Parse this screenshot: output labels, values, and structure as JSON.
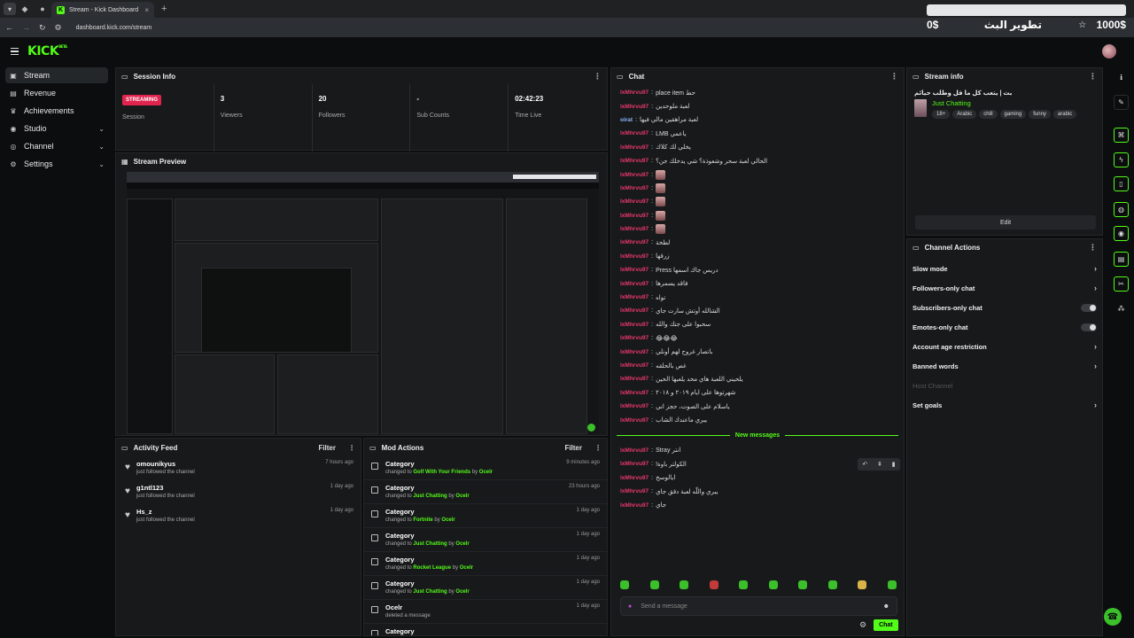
{
  "browser": {
    "tab_title": "Stream - Kick Dashboard",
    "url": "dashboard.kick.com/stream",
    "new_tab": "+",
    "close": "×"
  },
  "overlay": {
    "left_amount": "0$",
    "title": "تطوير البث",
    "right_amount": "1000$"
  },
  "logo": {
    "text": "KICK",
    "beta": "BETA"
  },
  "sidebar": {
    "items": [
      {
        "label": "Stream",
        "icon": "stream-icon",
        "active": true,
        "expandable": false
      },
      {
        "label": "Revenue",
        "icon": "revenue-icon",
        "active": false,
        "expandable": false
      },
      {
        "label": "Achievements",
        "icon": "trophy-icon",
        "active": false,
        "expandable": false
      },
      {
        "label": "Studio",
        "icon": "studio-icon",
        "active": false,
        "expandable": true
      },
      {
        "label": "Channel",
        "icon": "channel-icon",
        "active": false,
        "expandable": true
      },
      {
        "label": "Settings",
        "icon": "gear-icon",
        "active": false,
        "expandable": true
      }
    ]
  },
  "session_info": {
    "title": "Session Info",
    "badge": "STREAMING",
    "stats": [
      {
        "value": "",
        "label": "Session"
      },
      {
        "value": "3",
        "label": "Viewers"
      },
      {
        "value": "20",
        "label": "Followers"
      },
      {
        "value": "-",
        "label": "Sub Counts"
      },
      {
        "value": "02:42:23",
        "label": "Time Live"
      }
    ]
  },
  "stream_preview": {
    "title": "Stream Preview"
  },
  "activity_feed": {
    "title": "Activity Feed",
    "filter": "Filter",
    "items": [
      {
        "name": "omounikyus",
        "sub": "just followed the channel",
        "time": "7 hours ago"
      },
      {
        "name": "g1ntl123",
        "sub": "just followed the channel",
        "time": "1 day ago"
      },
      {
        "name": "Hs_z",
        "sub": "just followed the channel",
        "time": "1 day ago"
      }
    ]
  },
  "mod_actions": {
    "title": "Mod Actions",
    "filter": "Filter",
    "items": [
      {
        "title": "Category",
        "pre": "changed to",
        "target": "Golf With Your Friends",
        "mid": "by",
        "actor": "Ocelr",
        "time": "9 minutes ago"
      },
      {
        "title": "Category",
        "pre": "changed to",
        "target": "Just Chatting",
        "mid": "by",
        "actor": "Ocelr",
        "time": "23 hours ago"
      },
      {
        "title": "Category",
        "pre": "changed to",
        "target": "Fortnite",
        "mid": "by",
        "actor": "Ocelr",
        "time": "1 day ago"
      },
      {
        "title": "Category",
        "pre": "changed to",
        "target": "Just Chatting",
        "mid": "by",
        "actor": "Ocelr",
        "time": "1 day ago"
      },
      {
        "title": "Category",
        "pre": "changed to",
        "target": "Rocket League",
        "mid": "by",
        "actor": "Ocelr",
        "time": "1 day ago"
      },
      {
        "title": "Category",
        "pre": "changed to",
        "target": "Just Chatting",
        "mid": "by",
        "actor": "Ocelr",
        "time": "1 day ago"
      },
      {
        "title": "Ocelr",
        "pre": "deleted a message",
        "target": "",
        "mid": "",
        "actor": "",
        "time": "1 day ago"
      },
      {
        "title": "Category",
        "pre": "",
        "target": "",
        "mid": "",
        "actor": "",
        "time": ""
      }
    ]
  },
  "chat": {
    "title": "Chat",
    "messages": [
      {
        "user": "lxMhrvu97",
        "msg": "حط place item",
        "emote": false,
        "blue": false
      },
      {
        "user": "lxMhrvu97",
        "msg": "لعبة ملوحدين",
        "emote": false,
        "blue": false
      },
      {
        "user": "oirat",
        "msg": "لعبة مراهقين مالي فيها",
        "emote": false,
        "blue": true
      },
      {
        "user": "lxMhrvu97",
        "msg": "ياعمي LMB",
        "emote": false,
        "blue": false
      },
      {
        "user": "lxMhrvu97",
        "msg": "يخلي لك كلاك",
        "emote": false,
        "blue": false
      },
      {
        "user": "lxMhrvu97",
        "msg": "الحالي لعبة سحر وشعوذة؟ شي يدخلك جن؟",
        "emote": false,
        "blue": false
      },
      {
        "user": "lxMhrvu97",
        "msg": "",
        "emote": true,
        "blue": false
      },
      {
        "user": "lxMhrvu97",
        "msg": "",
        "emote": true,
        "blue": false
      },
      {
        "user": "lxMhrvu97",
        "msg": "",
        "emote": true,
        "blue": false
      },
      {
        "user": "lxMhrvu97",
        "msg": "",
        "emote": true,
        "blue": false
      },
      {
        "user": "lxMhrvu97",
        "msg": "",
        "emote": true,
        "blue": false
      },
      {
        "user": "lxMhrvu97",
        "msg": "لطخة",
        "emote": false,
        "blue": false
      },
      {
        "user": "lxMhrvu97",
        "msg": "زرقها",
        "emote": false,
        "blue": false
      },
      {
        "user": "lxMhrvu97",
        "msg": "دريس جاك اسمها Press",
        "emote": false,
        "blue": false
      },
      {
        "user": "lxMhrvu97",
        "msg": "فاقد يسمرها",
        "emote": false,
        "blue": false
      },
      {
        "user": "lxMhrvu97",
        "msg": "تواه",
        "emote": false,
        "blue": false
      },
      {
        "user": "lxMhrvu97",
        "msg": "الشالله أوتش سارت جاي",
        "emote": false,
        "blue": false
      },
      {
        "user": "lxMhrvu97",
        "msg": "سحبوا على جتك والله",
        "emote": false,
        "blue": false
      },
      {
        "user": "lxMhrvu97",
        "msg": "😂😂😂",
        "emote": false,
        "blue": false
      },
      {
        "user": "lxMhrvu97",
        "msg": "باتصار غروح لهم أونلي",
        "emote": false,
        "blue": false
      },
      {
        "user": "lxMhrvu97",
        "msg": "غص بالحلقه",
        "emote": false,
        "blue": false
      },
      {
        "user": "lxMhrvu97",
        "msg": "يلحيني اللعبة هاي محد يلعبها الحين",
        "emote": false,
        "blue": false
      },
      {
        "user": "lxMhrvu97",
        "msg": "شهرتوها على ايام ٢٠١٩ و ٢٠١٨",
        "emote": false,
        "blue": false
      },
      {
        "user": "lxMhrvu97",
        "msg": "ياسلام على الصوت، حجز اني",
        "emote": false,
        "blue": false
      },
      {
        "user": "lxMhrvu97",
        "msg": "يبري ماعندك الشاب",
        "emote": false,
        "blue": false
      }
    ],
    "new_messages_label": "New messages",
    "new_messages": [
      {
        "user": "lxMhrvu97",
        "msg": "انتر Stray"
      },
      {
        "user": "lxMhrvu97",
        "msg": "الكولتر باوة!"
      },
      {
        "user": "lxMhrvu97",
        "msg": "ايالوسخ"
      },
      {
        "user": "lxMhrvu97",
        "msg": "يبري واللّه لعبة دقق جاي"
      },
      {
        "user": "lxMhrvu97",
        "msg": "جاي"
      }
    ],
    "input_placeholder": "Send a message",
    "send_label": "Chat"
  },
  "stream_info": {
    "title": "Stream info",
    "stream_title": "بث | يتعب كل ما قل وطلب حيائم",
    "category": "Just Chatting",
    "tags": [
      "18+",
      "Arabic",
      "chill",
      "gaming",
      "funny",
      "arabic"
    ],
    "edit_label": "Edit"
  },
  "channel_actions": {
    "title": "Channel Actions",
    "items": [
      {
        "label": "Slow mode",
        "type": "chevron",
        "disabled": false
      },
      {
        "label": "Followers-only chat",
        "type": "chevron",
        "disabled": false
      },
      {
        "label": "Subscribers-only chat",
        "type": "toggle",
        "disabled": false
      },
      {
        "label": "Emotes-only chat",
        "type": "toggle",
        "disabled": false
      },
      {
        "label": "Account age restriction",
        "type": "chevron",
        "disabled": false
      },
      {
        "label": "Banned words",
        "type": "chevron",
        "disabled": false
      },
      {
        "label": "Host Channel",
        "type": "none",
        "disabled": true
      },
      {
        "label": "Set goals",
        "type": "chevron",
        "disabled": false
      }
    ]
  },
  "colors": {
    "accent": "#53fc18",
    "live": "#e0244e",
    "username": "#e7396b",
    "panel": "#18191b",
    "bg": "#0b0d0e"
  }
}
